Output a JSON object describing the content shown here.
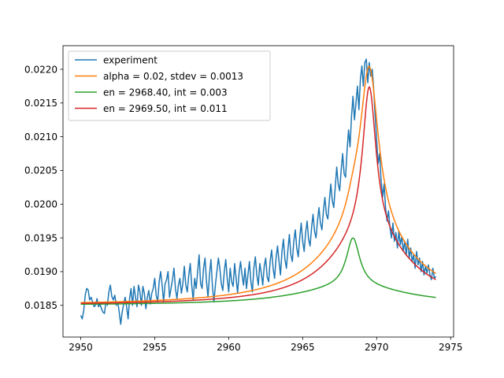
{
  "chart_data": {
    "type": "line",
    "xlim": [
      2948.8,
      2975.2
    ],
    "ylim": [
      0.01803,
      0.02235
    ],
    "x_ticks": [
      2950,
      2955,
      2960,
      2965,
      2970,
      2975
    ],
    "y_ticks": [
      0.0185,
      0.019,
      0.0195,
      0.02,
      0.0205,
      0.021,
      0.0215,
      0.022
    ],
    "x_tick_labels": [
      "2950",
      "2955",
      "2960",
      "2965",
      "2970",
      "2975"
    ],
    "y_tick_labels": [
      "0.0185",
      "0.0190",
      "0.0195",
      "0.0200",
      "0.0205",
      "0.0210",
      "0.0215",
      "0.0220"
    ],
    "grid": false,
    "legend_position": "top-left",
    "series": [
      {
        "name": "experiment",
        "color": "#1f77b4",
        "points": [
          [
            2950.0,
            0.01835
          ],
          [
            2950.1,
            0.0183
          ],
          [
            2950.2,
            0.01842
          ],
          [
            2950.3,
            0.01865
          ],
          [
            2950.4,
            0.01875
          ],
          [
            2950.5,
            0.01873
          ],
          [
            2950.6,
            0.01858
          ],
          [
            2950.7,
            0.01862
          ],
          [
            2950.8,
            0.01855
          ],
          [
            2950.9,
            0.01848
          ],
          [
            2951.0,
            0.0185
          ],
          [
            2951.1,
            0.0186
          ],
          [
            2951.2,
            0.01848
          ],
          [
            2951.3,
            0.01852
          ],
          [
            2951.4,
            0.01845
          ],
          [
            2951.5,
            0.0184
          ],
          [
            2951.6,
            0.01838
          ],
          [
            2951.7,
            0.01855
          ],
          [
            2951.8,
            0.0185
          ],
          [
            2951.9,
            0.0187
          ],
          [
            2952.0,
            0.0188
          ],
          [
            2952.1,
            0.01863
          ],
          [
            2952.2,
            0.01858
          ],
          [
            2952.3,
            0.01865
          ],
          [
            2952.4,
            0.0185
          ],
          [
            2952.5,
            0.01855
          ],
          [
            2952.6,
            0.0184
          ],
          [
            2952.7,
            0.01822
          ],
          [
            2952.8,
            0.0184
          ],
          [
            2952.9,
            0.01852
          ],
          [
            2953.0,
            0.01862
          ],
          [
            2953.1,
            0.01848
          ],
          [
            2953.2,
            0.0183
          ],
          [
            2953.3,
            0.0186
          ],
          [
            2953.4,
            0.01875
          ],
          [
            2953.5,
            0.0185
          ],
          [
            2953.6,
            0.01878
          ],
          [
            2953.7,
            0.01862
          ],
          [
            2953.8,
            0.01848
          ],
          [
            2953.9,
            0.0188
          ],
          [
            2954.0,
            0.0187
          ],
          [
            2954.1,
            0.0185
          ],
          [
            2954.2,
            0.01878
          ],
          [
            2954.3,
            0.01868
          ],
          [
            2954.4,
            0.01845
          ],
          [
            2954.5,
            0.01862
          ],
          [
            2954.6,
            0.01872
          ],
          [
            2954.7,
            0.01852
          ],
          [
            2954.8,
            0.01868
          ],
          [
            2954.9,
            0.01875
          ],
          [
            2955.0,
            0.0189
          ],
          [
            2955.1,
            0.01865
          ],
          [
            2955.2,
            0.01855
          ],
          [
            2955.3,
            0.01885
          ],
          [
            2955.4,
            0.019
          ],
          [
            2955.5,
            0.0188
          ],
          [
            2955.6,
            0.01855
          ],
          [
            2955.7,
            0.01882
          ],
          [
            2955.8,
            0.01888
          ],
          [
            2955.9,
            0.019
          ],
          [
            2956.0,
            0.01862
          ],
          [
            2956.1,
            0.01875
          ],
          [
            2956.2,
            0.01888
          ],
          [
            2956.3,
            0.01905
          ],
          [
            2956.4,
            0.01875
          ],
          [
            2956.5,
            0.0186
          ],
          [
            2956.6,
            0.0188
          ],
          [
            2956.7,
            0.0189
          ],
          [
            2956.8,
            0.01868
          ],
          [
            2956.9,
            0.01882
          ],
          [
            2957.0,
            0.01908
          ],
          [
            2957.1,
            0.0188
          ],
          [
            2957.2,
            0.0187
          ],
          [
            2957.3,
            0.01895
          ],
          [
            2957.4,
            0.01912
          ],
          [
            2957.5,
            0.0188
          ],
          [
            2957.6,
            0.01858
          ],
          [
            2957.7,
            0.0189
          ],
          [
            2957.8,
            0.01875
          ],
          [
            2957.9,
            0.019
          ],
          [
            2958.0,
            0.01925
          ],
          [
            2958.1,
            0.01882
          ],
          [
            2958.2,
            0.01875
          ],
          [
            2958.3,
            0.01905
          ],
          [
            2958.4,
            0.0192
          ],
          [
            2958.5,
            0.01885
          ],
          [
            2958.6,
            0.01862
          ],
          [
            2958.7,
            0.01895
          ],
          [
            2958.8,
            0.01918
          ],
          [
            2958.9,
            0.01878
          ],
          [
            2959.0,
            0.01855
          ],
          [
            2959.1,
            0.0188
          ],
          [
            2959.2,
            0.019
          ],
          [
            2959.3,
            0.0192
          ],
          [
            2959.4,
            0.01905
          ],
          [
            2959.5,
            0.01882
          ],
          [
            2959.6,
            0.01872
          ],
          [
            2959.7,
            0.019
          ],
          [
            2959.8,
            0.01918
          ],
          [
            2959.9,
            0.0189
          ],
          [
            2960.0,
            0.0187
          ],
          [
            2960.1,
            0.01905
          ],
          [
            2960.2,
            0.01885
          ],
          [
            2960.3,
            0.01878
          ],
          [
            2960.4,
            0.01912
          ],
          [
            2960.5,
            0.0189
          ],
          [
            2960.6,
            0.01868
          ],
          [
            2960.7,
            0.01898
          ],
          [
            2960.8,
            0.01915
          ],
          [
            2960.9,
            0.01895
          ],
          [
            2961.0,
            0.0188
          ],
          [
            2961.1,
            0.01905
          ],
          [
            2961.2,
            0.01875
          ],
          [
            2961.3,
            0.01895
          ],
          [
            2961.4,
            0.01915
          ],
          [
            2961.5,
            0.01885
          ],
          [
            2961.6,
            0.0187
          ],
          [
            2961.7,
            0.01905
          ],
          [
            2961.8,
            0.01922
          ],
          [
            2961.9,
            0.01895
          ],
          [
            2962.0,
            0.0188
          ],
          [
            2962.1,
            0.01912
          ],
          [
            2962.2,
            0.01898
          ],
          [
            2962.3,
            0.0188
          ],
          [
            2962.4,
            0.01908
          ],
          [
            2962.5,
            0.0192
          ],
          [
            2962.6,
            0.01892
          ],
          [
            2962.7,
            0.01885
          ],
          [
            2962.8,
            0.01915
          ],
          [
            2962.9,
            0.01932
          ],
          [
            2963.0,
            0.01905
          ],
          [
            2963.1,
            0.0189
          ],
          [
            2963.2,
            0.0192
          ],
          [
            2963.3,
            0.01938
          ],
          [
            2963.4,
            0.01915
          ],
          [
            2963.5,
            0.01895
          ],
          [
            2963.6,
            0.0193
          ],
          [
            2963.7,
            0.01948
          ],
          [
            2963.8,
            0.01918
          ],
          [
            2963.9,
            0.01905
          ],
          [
            2964.0,
            0.01932
          ],
          [
            2964.1,
            0.01955
          ],
          [
            2964.2,
            0.01925
          ],
          [
            2964.3,
            0.01915
          ],
          [
            2964.4,
            0.01945
          ],
          [
            2964.5,
            0.01962
          ],
          [
            2964.6,
            0.01935
          ],
          [
            2964.7,
            0.01922
          ],
          [
            2964.8,
            0.0195
          ],
          [
            2964.9,
            0.01972
          ],
          [
            2965.0,
            0.01945
          ],
          [
            2965.1,
            0.0193
          ],
          [
            2965.2,
            0.01958
          ],
          [
            2965.3,
            0.01975
          ],
          [
            2965.4,
            0.01948
          ],
          [
            2965.5,
            0.01938
          ],
          [
            2965.6,
            0.01965
          ],
          [
            2965.7,
            0.01985
          ],
          [
            2965.8,
            0.0196
          ],
          [
            2965.9,
            0.0195
          ],
          [
            2966.0,
            0.01975
          ],
          [
            2966.1,
            0.01995
          ],
          [
            2966.2,
            0.01972
          ],
          [
            2966.3,
            0.01962
          ],
          [
            2966.4,
            0.0199
          ],
          [
            2966.5,
            0.0201
          ],
          [
            2966.6,
            0.01985
          ],
          [
            2966.7,
            0.01978
          ],
          [
            2966.8,
            0.02005
          ],
          [
            2966.9,
            0.0203
          ],
          [
            2967.0,
            0.02005
          ],
          [
            2967.1,
            0.01995
          ],
          [
            2967.2,
            0.02025
          ],
          [
            2967.3,
            0.02055
          ],
          [
            2967.4,
            0.0203
          ],
          [
            2967.5,
            0.0202
          ],
          [
            2967.6,
            0.0205
          ],
          [
            2967.7,
            0.02075
          ],
          [
            2967.8,
            0.02045
          ],
          [
            2967.9,
            0.0204
          ],
          [
            2968.0,
            0.0208
          ],
          [
            2968.1,
            0.0211
          ],
          [
            2968.2,
            0.02085
          ],
          [
            2968.3,
            0.0213
          ],
          [
            2968.4,
            0.0216
          ],
          [
            2968.5,
            0.02125
          ],
          [
            2968.6,
            0.0215
          ],
          [
            2968.7,
            0.02175
          ],
          [
            2968.8,
            0.0214
          ],
          [
            2968.9,
            0.02185
          ],
          [
            2969.0,
            0.02205
          ],
          [
            2969.1,
            0.02175
          ],
          [
            2969.2,
            0.0221
          ],
          [
            2969.3,
            0.02215
          ],
          [
            2969.4,
            0.0218
          ],
          [
            2969.5,
            0.0221
          ],
          [
            2969.6,
            0.0219
          ],
          [
            2969.7,
            0.022
          ],
          [
            2969.8,
            0.0217
          ],
          [
            2969.9,
            0.0213
          ],
          [
            2970.0,
            0.02095
          ],
          [
            2970.1,
            0.0206
          ],
          [
            2970.2,
            0.02075
          ],
          [
            2970.3,
            0.02035
          ],
          [
            2970.4,
            0.0201
          ],
          [
            2970.5,
            0.0203
          ],
          [
            2970.6,
            0.01995
          ],
          [
            2970.7,
            0.01975
          ],
          [
            2970.8,
            0.0199
          ],
          [
            2970.9,
            0.01965
          ],
          [
            2971.0,
            0.0195
          ],
          [
            2971.1,
            0.01972
          ],
          [
            2971.2,
            0.01945
          ],
          [
            2971.3,
            0.01958
          ],
          [
            2971.4,
            0.01935
          ],
          [
            2971.5,
            0.0196
          ],
          [
            2971.6,
            0.0194
          ],
          [
            2971.7,
            0.01952
          ],
          [
            2971.8,
            0.0193
          ],
          [
            2971.9,
            0.01945
          ],
          [
            2972.0,
            0.01925
          ],
          [
            2972.1,
            0.01948
          ],
          [
            2972.2,
            0.0192
          ],
          [
            2972.3,
            0.01935
          ],
          [
            2972.4,
            0.01915
          ],
          [
            2972.5,
            0.01925
          ],
          [
            2972.6,
            0.01905
          ],
          [
            2972.7,
            0.0193
          ],
          [
            2972.8,
            0.0191
          ],
          [
            2972.9,
            0.0192
          ],
          [
            2973.0,
            0.019
          ],
          [
            2973.1,
            0.01915
          ],
          [
            2973.2,
            0.01895
          ],
          [
            2973.3,
            0.01908
          ],
          [
            2973.4,
            0.01898
          ],
          [
            2973.5,
            0.0191
          ],
          [
            2973.6,
            0.01895
          ],
          [
            2973.7,
            0.01888
          ],
          [
            2973.8,
            0.01905
          ],
          [
            2973.9,
            0.0189
          ],
          [
            2974.0,
            0.01893
          ]
        ]
      },
      {
        "name": "alpha = 0.02, stdev = 0.0013",
        "color": "#ff7f0e"
      },
      {
        "name": "en = 2968.40, int = 0.003",
        "color": "#2ca02c"
      },
      {
        "name": "en = 2969.50, int = 0.011",
        "color": "#d62728"
      }
    ]
  }
}
